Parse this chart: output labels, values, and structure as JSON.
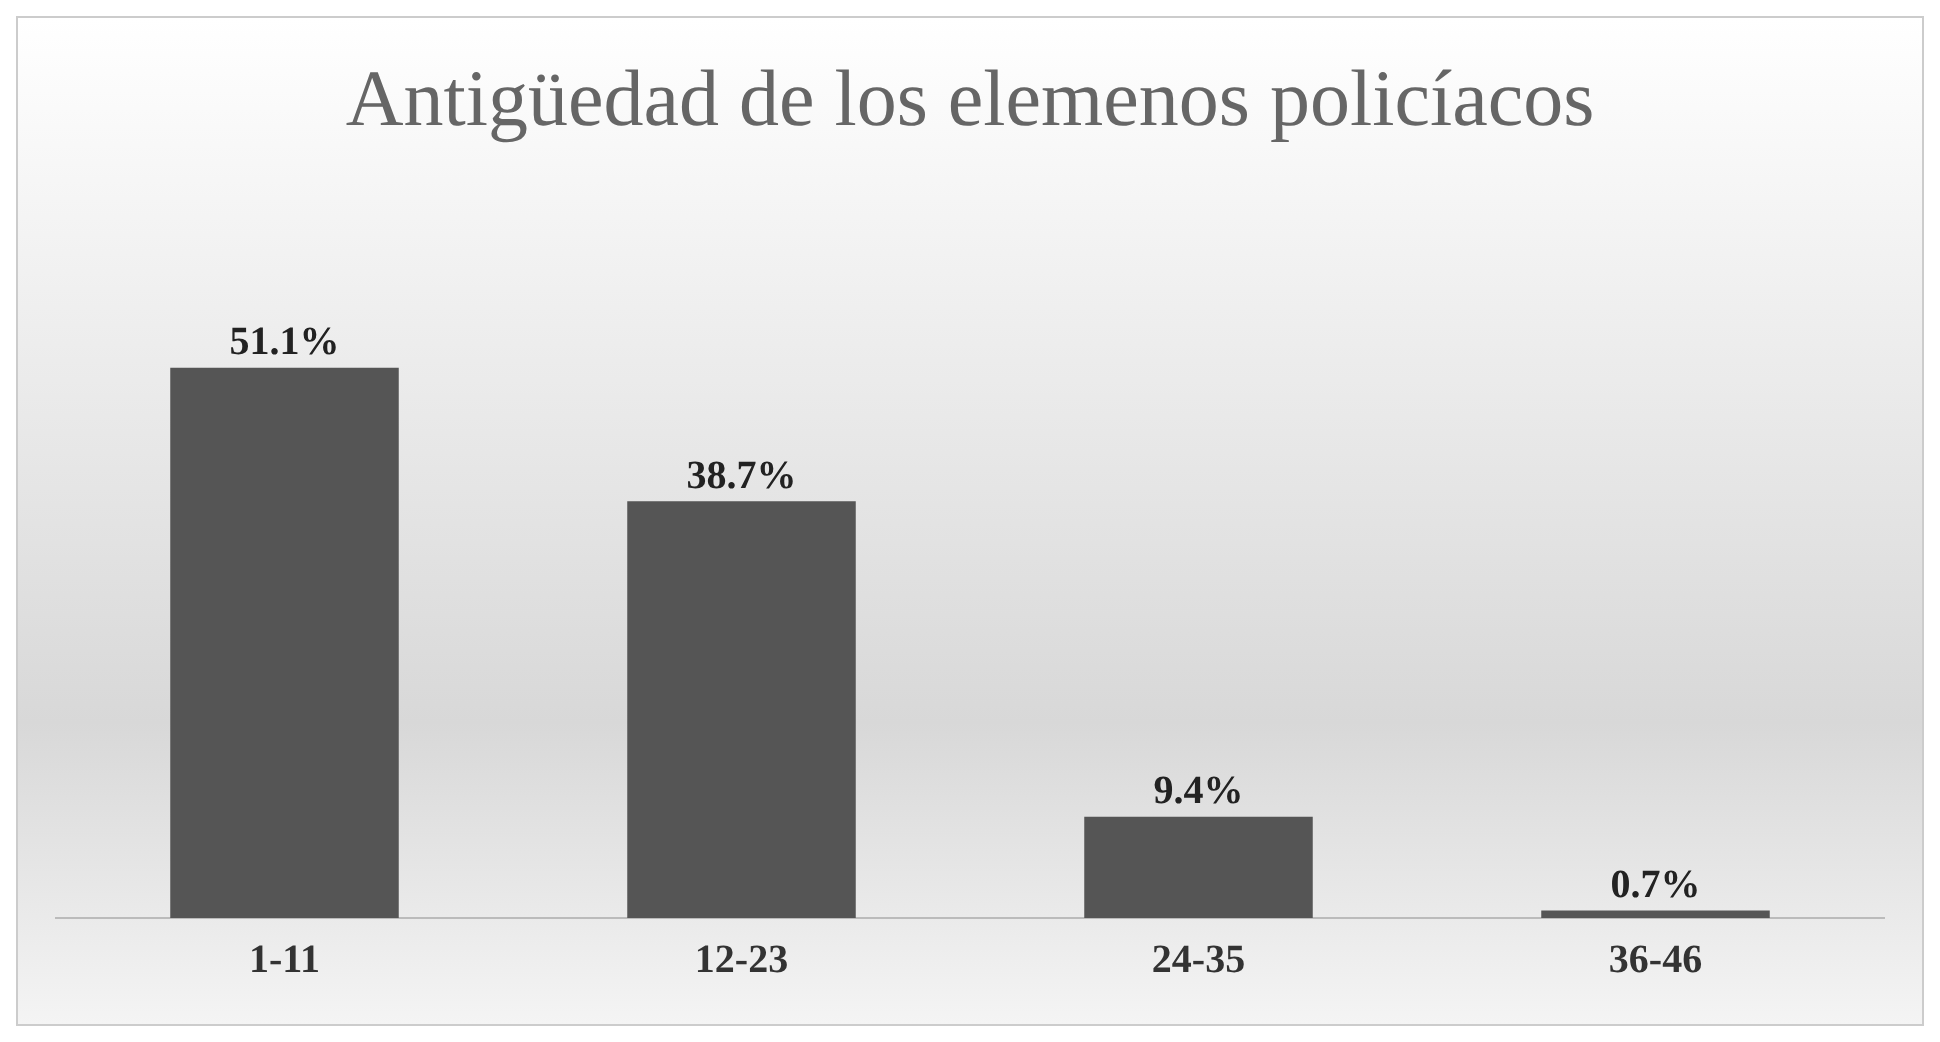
{
  "chart_data": {
    "type": "bar",
    "title": "Antigüedad de los elemenos policíacos",
    "categories": [
      "1-11",
      "12-23",
      "24-35",
      "36-46"
    ],
    "values": [
      51.1,
      38.7,
      9.4,
      0.7
    ],
    "value_labels": [
      "51.1%",
      "38.7%",
      "9.4%",
      "0.7%"
    ],
    "color": "#555555",
    "grid": false,
    "legend": false
  }
}
